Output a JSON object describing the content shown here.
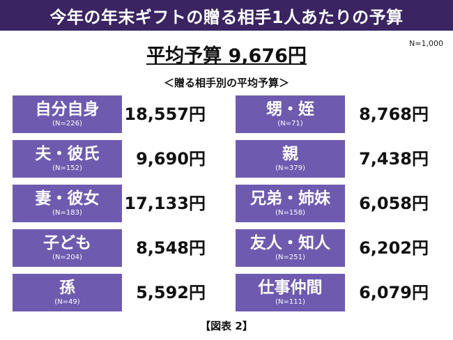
{
  "header": {
    "title": "今年の年末ギフトの贈る相手1人あたりの予算"
  },
  "sample_size": "N=1,000",
  "average": {
    "text": "平均予算 9,676円"
  },
  "subtitle": "＜贈る相手別の平均予算＞",
  "caption": "【図表 2】",
  "chart_data": {
    "type": "table",
    "title": "今年の年末ギフトの贈る相手1人あたりの予算",
    "overall_average": 9676,
    "unit": "円",
    "rows": [
      {
        "category": "自分自身",
        "n": "(N=226)",
        "value": 18557,
        "value_label": "18,557円"
      },
      {
        "category": "夫・彼氏",
        "n": "(N=152)",
        "value": 9690,
        "value_label": "9,690円"
      },
      {
        "category": "妻・彼女",
        "n": "(N=183)",
        "value": 17133,
        "value_label": "17,133円"
      },
      {
        "category": "子ども",
        "n": "(N=204)",
        "value": 8548,
        "value_label": "8,548円"
      },
      {
        "category": "孫",
        "n": "(N=49)",
        "value": 5592,
        "value_label": "5,592円"
      },
      {
        "category": "甥・姪",
        "n": "(N=71)",
        "value": 8768,
        "value_label": "8,768円"
      },
      {
        "category": "親",
        "n": "(N=379)",
        "value": 7438,
        "value_label": "7,438円"
      },
      {
        "category": "兄弟・姉妹",
        "n": "(N=158)",
        "value": 6058,
        "value_label": "6,058円"
      },
      {
        "category": "友人・知人",
        "n": "(N=251)",
        "value": 6202,
        "value_label": "6,202円"
      },
      {
        "category": "仕事仲間",
        "n": "(N=111)",
        "value": 6079,
        "value_label": "6,079円"
      }
    ]
  }
}
